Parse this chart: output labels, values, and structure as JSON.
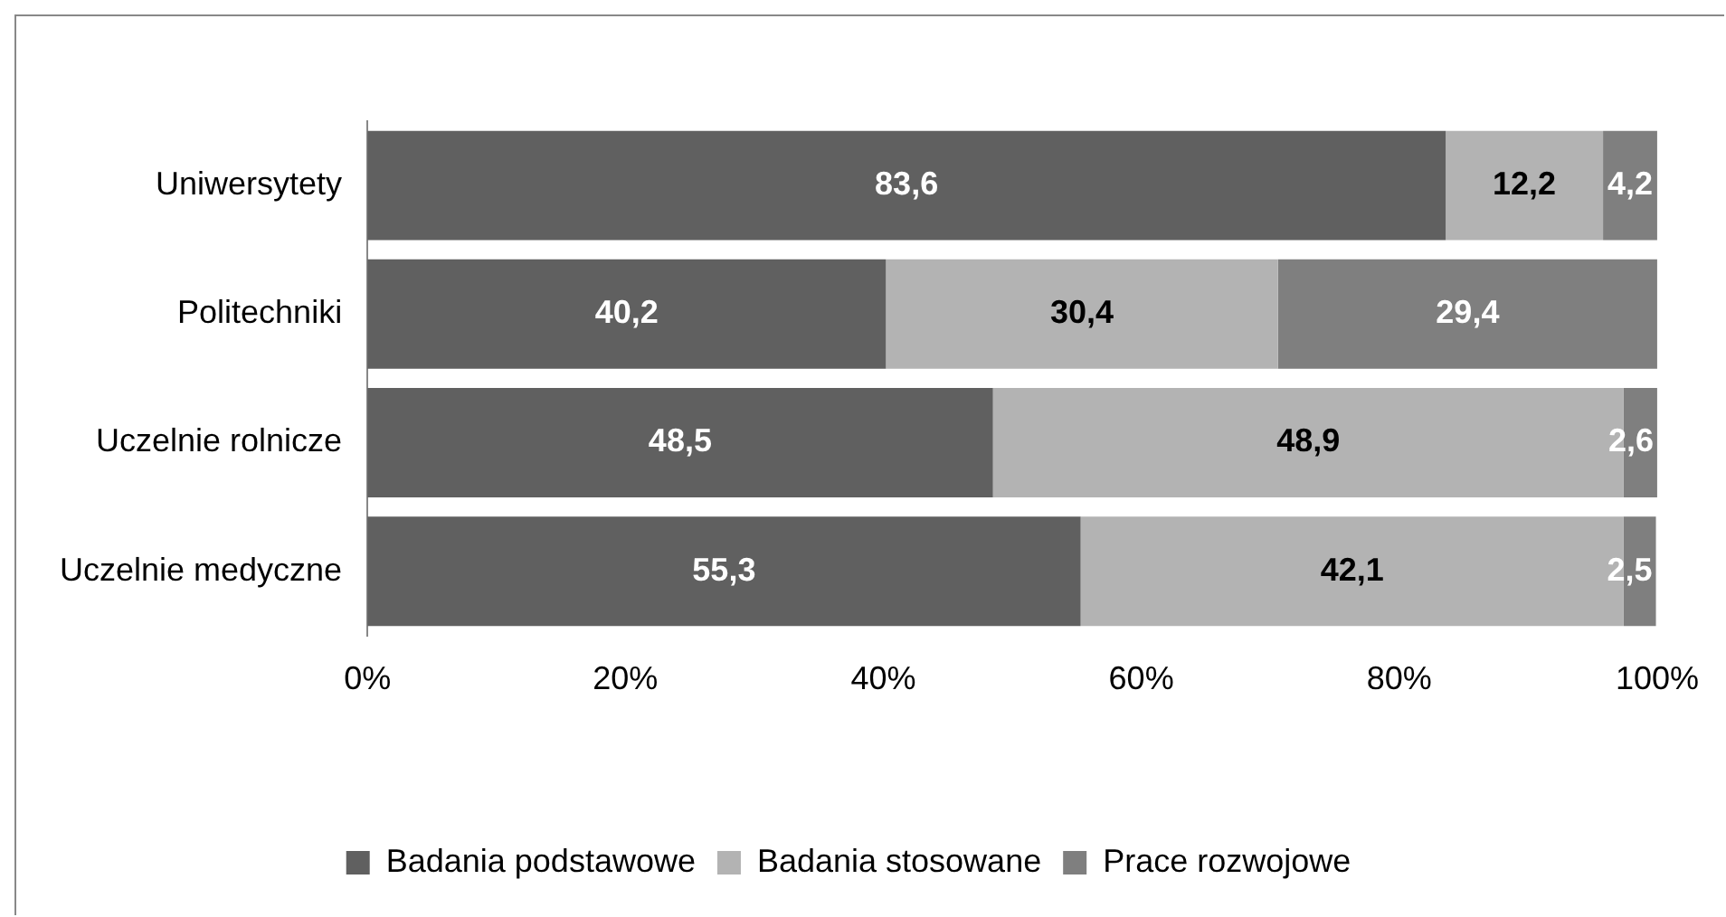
{
  "chart_data": {
    "type": "bar",
    "orientation": "horizontal",
    "stacked": true,
    "categories": [
      "Uniwersytety",
      "Politechniki",
      "Uczelnie rolnicze",
      "Uczelnie medyczne"
    ],
    "series": [
      {
        "name": "Badania podstawowe",
        "color": "#606060",
        "values": [
          83.6,
          40.2,
          48.5,
          55.3
        ],
        "value_labels": [
          "83,6",
          "40,2",
          "48,5",
          "55,3"
        ]
      },
      {
        "name": "Badania stosowane",
        "color": "#b3b3b3",
        "values": [
          12.2,
          30.4,
          48.9,
          42.1
        ],
        "value_labels": [
          "12,2",
          "30,4",
          "48,9",
          "42,1"
        ]
      },
      {
        "name": "Prace rozwojowe",
        "color": "#7f7f7f",
        "values": [
          4.2,
          29.4,
          2.6,
          2.5
        ],
        "value_labels": [
          "4,2",
          "29,4",
          "2,6",
          "2,5"
        ]
      }
    ],
    "xlim": [
      0,
      100
    ],
    "xticks": [
      {
        "value": 0,
        "label": "0%"
      },
      {
        "value": 20,
        "label": "20%"
      },
      {
        "value": 40,
        "label": "40%"
      },
      {
        "value": 60,
        "label": "60%"
      },
      {
        "value": 80,
        "label": "80%"
      },
      {
        "value": 100,
        "label": "100%"
      }
    ],
    "grid": false,
    "legend": "bottom"
  }
}
